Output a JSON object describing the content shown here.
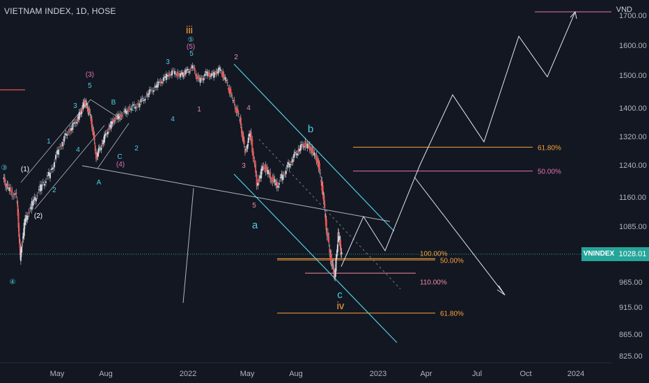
{
  "chart_data": {
    "type": "line",
    "title": "VIETNAM INDEX, 1D, HOSE",
    "unit": "VND",
    "symbol": "VNINDEX",
    "last_price": "1028.01",
    "y_ticks": [
      "1700.00",
      "1600.00",
      "1500.00",
      "1400.00",
      "1320.00",
      "1240.00",
      "1160.00",
      "1085.00",
      "1028.01",
      "965.00",
      "915.00",
      "865.00",
      "825.00"
    ],
    "x_ticks": [
      "May",
      "Aug",
      "2022",
      "May",
      "Aug",
      "2023",
      "Apr",
      "Jul",
      "Oct",
      "2024"
    ],
    "series": [
      {
        "values": [
          [
            0.0,
            1205
          ],
          [
            0.3,
            1180
          ],
          [
            0.8,
            1160
          ],
          [
            1.0,
            1020
          ],
          [
            1.3,
            1100
          ],
          [
            1.8,
            1150
          ],
          [
            2.3,
            1190
          ],
          [
            2.8,
            1220
          ],
          [
            3.3,
            1285
          ],
          [
            3.8,
            1330
          ],
          [
            4.3,
            1360
          ],
          [
            4.6,
            1390
          ],
          [
            4.8,
            1420
          ],
          [
            5.0,
            1400
          ],
          [
            5.2,
            1370
          ],
          [
            5.5,
            1265
          ],
          [
            5.8,
            1295
          ],
          [
            6.2,
            1340
          ],
          [
            6.6,
            1370
          ],
          [
            7.0,
            1380
          ],
          [
            7.5,
            1400
          ],
          [
            8.0,
            1410
          ],
          [
            8.5,
            1440
          ],
          [
            9.0,
            1465
          ],
          [
            9.5,
            1490
          ],
          [
            10.0,
            1510
          ],
          [
            10.5,
            1500
          ],
          [
            10.8,
            1510
          ],
          [
            11.2,
            1525
          ],
          [
            11.6,
            1480
          ],
          [
            12.0,
            1505
          ],
          [
            12.4,
            1500
          ],
          [
            12.8,
            1520
          ],
          [
            13.2,
            1480
          ],
          [
            13.6,
            1420
          ],
          [
            14.0,
            1365
          ],
          [
            14.3,
            1275
          ],
          [
            14.6,
            1330
          ],
          [
            15.0,
            1190
          ],
          [
            15.4,
            1240
          ],
          [
            15.8,
            1210
          ],
          [
            16.2,
            1190
          ],
          [
            16.6,
            1220
          ],
          [
            17.0,
            1250
          ],
          [
            17.4,
            1280
          ],
          [
            17.8,
            1300
          ],
          [
            18.2,
            1285
          ],
          [
            18.6,
            1250
          ],
          [
            18.9,
            1170
          ],
          [
            19.1,
            1080
          ],
          [
            19.4,
            1010
          ],
          [
            19.6,
            980
          ],
          [
            19.8,
            1070
          ],
          [
            20.0,
            1028
          ]
        ]
      }
    ],
    "forecast_path": [
      "1000",
      "1110",
      "1035",
      "1240",
      "1440",
      "1305",
      "1630",
      "1495",
      "1725"
    ],
    "forecast_alt_path": [
      "1210",
      "960"
    ],
    "fib_levels": [
      {
        "label": "61.80%",
        "value": 1290,
        "color": "#f7a23b"
      },
      {
        "label": "50.00%",
        "value": 1225,
        "color": "#e573b7"
      },
      {
        "label": "100.00%",
        "value": 1018,
        "color": "#f7a23b"
      },
      {
        "label": "50.00%",
        "value": 1015,
        "color": "#f7a23b"
      },
      {
        "label": "110.00%",
        "value": 985,
        "color": "#f08aa3"
      },
      {
        "label": "61.80%",
        "value": 904,
        "color": "#f7a23b"
      }
    ],
    "wave_labels": [
      {
        "text": "③",
        "color": "#4dd0e1"
      },
      {
        "text": "(1)",
        "color": "#ffffff"
      },
      {
        "text": "(2)",
        "color": "#ffffff"
      },
      {
        "text": "④",
        "color": "#4dd0e1"
      },
      {
        "text": "1",
        "color": "#4dd0e1"
      },
      {
        "text": "2",
        "color": "#4dd0e1"
      },
      {
        "text": "3",
        "color": "#4dd0e1"
      },
      {
        "text": "4",
        "color": "#4dd0e1"
      },
      {
        "text": "5",
        "color": "#4dd0e1"
      },
      {
        "text": "(3)",
        "color": "#e573b7"
      },
      {
        "text": "B",
        "color": "#4dd0e1"
      },
      {
        "text": "A",
        "color": "#4dd0e1"
      },
      {
        "text": "C",
        "color": "#4dd0e1"
      },
      {
        "text": "(4)",
        "color": "#e573b7"
      },
      {
        "text": "1",
        "color": "#4dd0e1"
      },
      {
        "text": "2",
        "color": "#4dd0e1"
      },
      {
        "text": "3",
        "color": "#4dd0e1"
      },
      {
        "text": "4",
        "color": "#4dd0e1"
      },
      {
        "text": "iii",
        "color": "#f7a23b"
      },
      {
        "text": "⑤",
        "color": "#4dd0e1"
      },
      {
        "text": "(5)",
        "color": "#e573b7"
      },
      {
        "text": "5",
        "color": "#4dd0e1"
      },
      {
        "text": "1",
        "color": "#f08aa3"
      },
      {
        "text": "2",
        "color": "#f08aa3"
      },
      {
        "text": "3",
        "color": "#f08aa3"
      },
      {
        "text": "4",
        "color": "#f08aa3"
      },
      {
        "text": "5",
        "color": "#f08aa3"
      },
      {
        "text": "a",
        "color": "#4dd0e1"
      },
      {
        "text": "b",
        "color": "#4dd0e1"
      },
      {
        "text": "c",
        "color": "#4dd0e1"
      },
      {
        "text": "iv",
        "color": "#f7a23b"
      }
    ]
  },
  "colors": {
    "background": "#131722",
    "channel": "#4dd0e1",
    "candles": "#d1d4dc",
    "price": "#26a69a"
  }
}
